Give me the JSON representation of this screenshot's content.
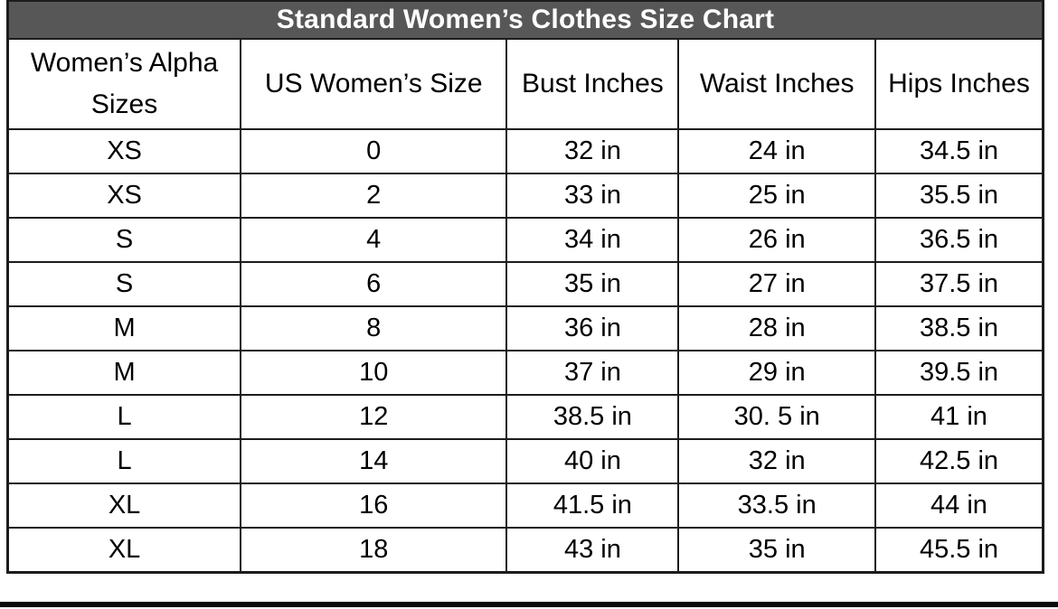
{
  "chart_data": {
    "type": "table",
    "title": "Standard Women’s Clothes Size Chart",
    "columns": [
      "Women’s Alpha Sizes",
      "US Women’s Size",
      "Bust Inches",
      "Waist Inches",
      "Hips Inches"
    ],
    "rows": [
      [
        "XS",
        "0",
        "32 in",
        "24 in",
        "34.5 in"
      ],
      [
        "XS",
        "2",
        "33 in",
        "25 in",
        "35.5 in"
      ],
      [
        "S",
        "4",
        "34 in",
        "26 in",
        "36.5 in"
      ],
      [
        "S",
        "6",
        "35 in",
        "27 in",
        "37.5 in"
      ],
      [
        "M",
        "8",
        "36 in",
        "28 in",
        "38.5 in"
      ],
      [
        "M",
        "10",
        "37 in",
        "29 in",
        "39.5 in"
      ],
      [
        "L",
        "12",
        "38.5 in",
        "30. 5 in",
        "41 in"
      ],
      [
        "L",
        "14",
        "40 in",
        "32 in",
        "42.5 in"
      ],
      [
        "XL",
        "16",
        "41.5 in",
        "33.5 in",
        "44 in"
      ],
      [
        "XL",
        "18",
        "43 in",
        "35 in",
        "45.5 in"
      ]
    ],
    "colors": {
      "title_bg": "#575757",
      "title_text": "#ffffff",
      "border": "#1c1c1c",
      "cell_text": "#000000",
      "bottom_rule": "#0a0a0a"
    }
  }
}
